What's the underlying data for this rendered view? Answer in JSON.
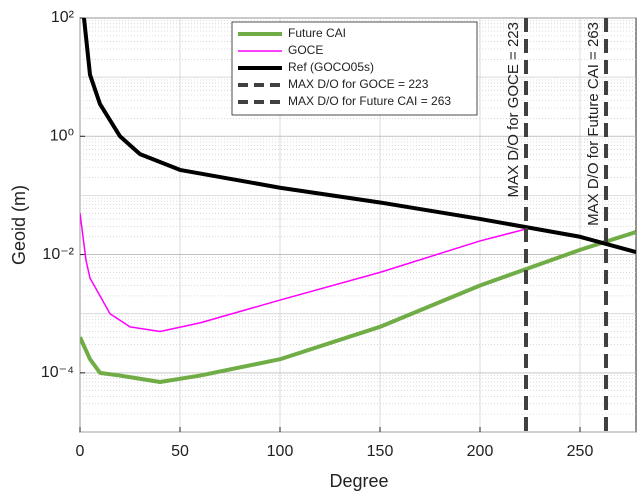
{
  "chart_data": {
    "type": "line",
    "xlabel": "Degree",
    "ylabel": "Geoid (m)",
    "xlim": [
      0,
      278
    ],
    "xticks": [
      0,
      50,
      100,
      150,
      200,
      250
    ],
    "ylim": [
      1e-05,
      100
    ],
    "ylog": true,
    "grid": true,
    "yticks": [
      {
        "value": 0.0001,
        "label": "10⁻⁴"
      },
      {
        "value": 0.01,
        "label": "10⁻²"
      },
      {
        "value": 1,
        "label": "10⁰"
      },
      {
        "value": 100,
        "label": "10²"
      }
    ],
    "legend": "top-center",
    "series": [
      {
        "name": "Future CAI",
        "color": "#70ad47",
        "width": 4,
        "x": [
          0,
          5,
          10,
          20,
          40,
          60,
          100,
          150,
          200,
          250,
          278
        ],
        "values": [
          0.0004,
          0.00017,
          0.0001,
          9e-05,
          7e-05,
          9e-05,
          0.00017,
          0.0006,
          0.003,
          0.012,
          0.024
        ]
      },
      {
        "name": "GOCE",
        "color": "#ff00ff",
        "width": 1.5,
        "x": [
          0,
          3,
          5,
          10,
          15,
          25,
          40,
          60,
          100,
          150,
          200,
          223
        ],
        "values": [
          0.05,
          0.008,
          0.004,
          0.002,
          0.001,
          0.0006,
          0.0005,
          0.0007,
          0.0017,
          0.005,
          0.017,
          0.027
        ]
      },
      {
        "name": "Ref (GOCO05s)",
        "color": "#000000",
        "width": 4,
        "x": [
          2,
          5,
          10,
          20,
          30,
          50,
          100,
          150,
          200,
          250,
          278
        ],
        "values": [
          100,
          11,
          3.5,
          1,
          0.5,
          0.27,
          0.135,
          0.076,
          0.04,
          0.02,
          0.011
        ]
      }
    ],
    "vlines": [
      {
        "name": "MAX D/O for GOCE = 223",
        "x": 223,
        "color": "#404040"
      },
      {
        "name": "MAX D/O for Future CAI = 263",
        "x": 263,
        "color": "#404040"
      }
    ]
  }
}
